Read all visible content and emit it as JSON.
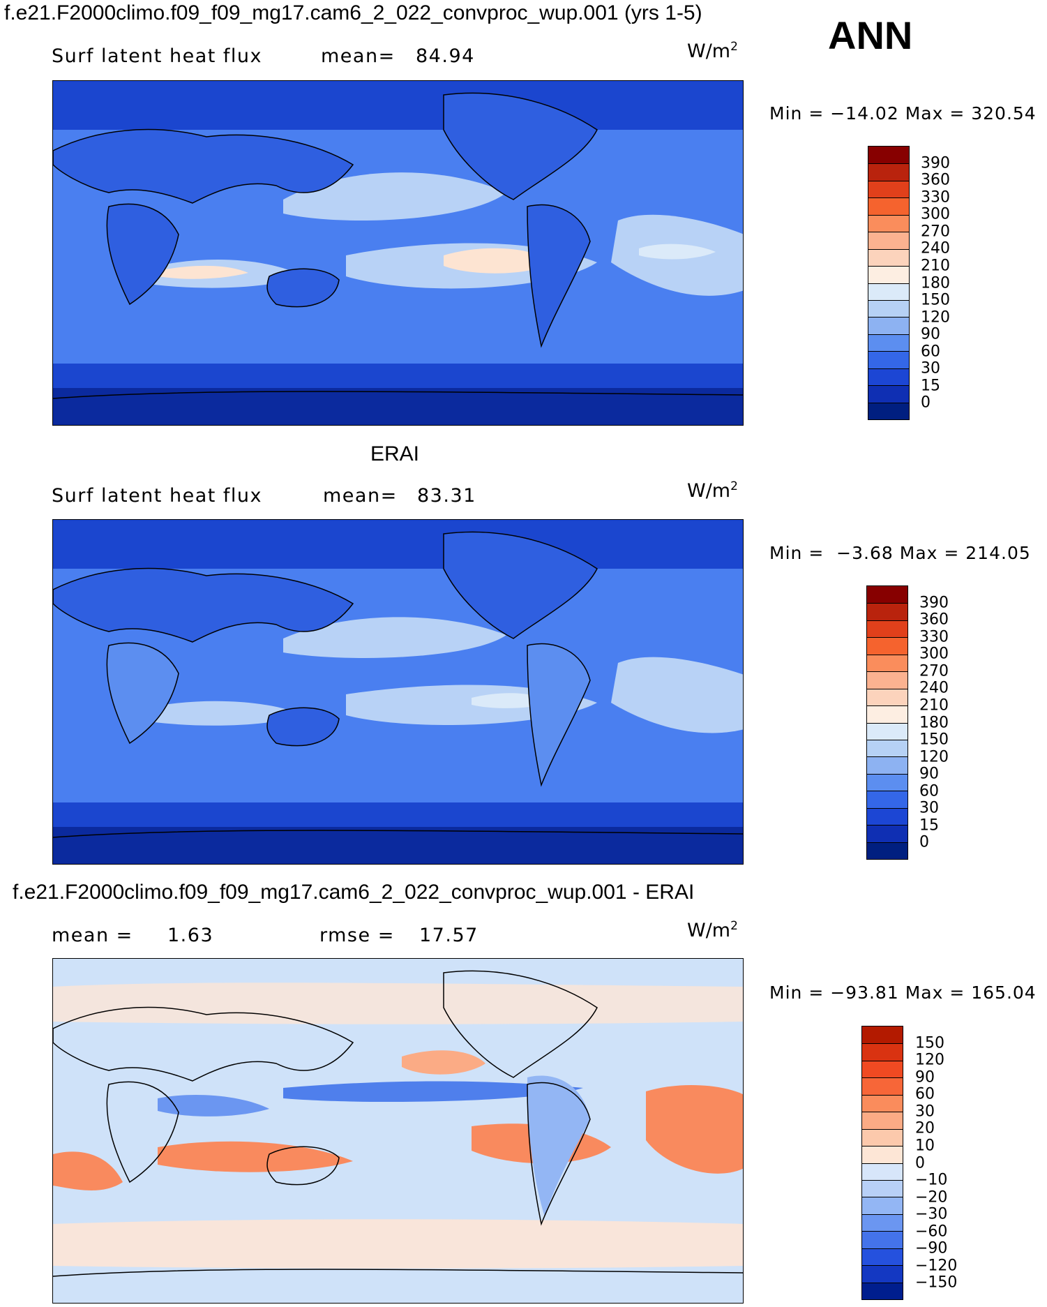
{
  "case_title": "f.e21.F2000climo.f09_f09_mg17.cam6_2_022_convproc_wup.001 (yrs 1-5)",
  "season": "ANN",
  "panels": {
    "model": {
      "variable": "Surf latent heat flux",
      "mean_label": "mean=",
      "mean_value": "84.94",
      "units": "W/m",
      "units_exp": "2",
      "min_label": "Min",
      "min_value": "−14.02",
      "max_label": "Max",
      "max_value": "320.54"
    },
    "obs": {
      "heading": "ERAI",
      "variable": "Surf latent heat flux",
      "mean_label": "mean=",
      "mean_value": "83.31",
      "units": "W/m",
      "units_exp": "2",
      "min_label": "Min",
      "min_value": "−3.68",
      "max_label": "Max",
      "max_value": "214.05"
    },
    "diff": {
      "heading": "f.e21.F2000climo.f09_f09_mg17.cam6_2_022_convproc_wup.001 - ERAI",
      "mean_label": "mean =",
      "mean_value": "1.63",
      "rmse_label": "rmse =",
      "rmse_value": "17.57",
      "units": "W/m",
      "units_exp": "2",
      "min_label": "Min",
      "min_value": "−93.81",
      "max_label": "Max",
      "max_value": "165.04"
    }
  },
  "colorbars": {
    "absolute": {
      "labels": [
        "390",
        "360",
        "330",
        "300",
        "270",
        "240",
        "210",
        "180",
        "150",
        "120",
        "90",
        "60",
        "30",
        "15",
        "0"
      ],
      "colors": [
        "#870000",
        "#b9230d",
        "#e1401b",
        "#f5632e",
        "#fa8d5c",
        "#fbb290",
        "#fcd3bc",
        "#fdeee2",
        "#dbeaf9",
        "#b6d1f5",
        "#8db2f2",
        "#5c8ef0",
        "#3467e8",
        "#1c46d4",
        "#0f2fb3",
        "#001f80"
      ]
    },
    "difference": {
      "labels": [
        "150",
        "120",
        "90",
        "60",
        "30",
        "20",
        "10",
        "0",
        "−10",
        "−20",
        "−30",
        "−60",
        "−90",
        "−120",
        "−150"
      ],
      "colors": [
        "#b31a00",
        "#d93311",
        "#f04a22",
        "#f76638",
        "#fa8c5c",
        "#fbab85",
        "#fcc9ac",
        "#fde6d6",
        "#d7e6fa",
        "#b8d0f7",
        "#93b6f4",
        "#6b96f1",
        "#4473ea",
        "#2551de",
        "#1438c2",
        "#001e8e"
      ]
    }
  },
  "map_palette": {
    "abs_land": "#2f5fe0",
    "abs_polar": "#0b2a9e",
    "abs_high_lat": "#1b46cf",
    "abs_mid": "#4a7ff0",
    "abs_subtropic": "#b8d2f6",
    "abs_peak": "#fde4d2",
    "diff_base": "#cfe2f9",
    "diff_pos": "#f98a5e",
    "diff_neg": "#4f7fec",
    "coast": "#000000"
  }
}
